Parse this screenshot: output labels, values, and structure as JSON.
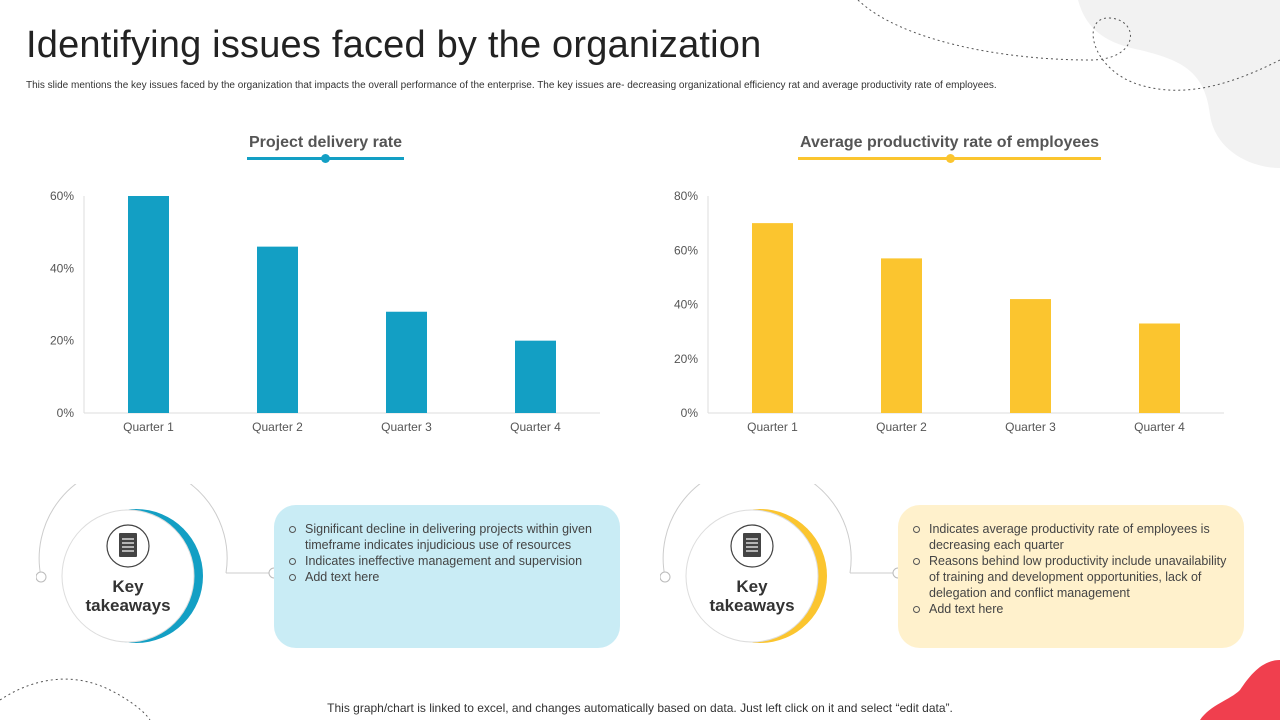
{
  "page": {
    "title": "Identifying issues faced by the organization",
    "subtitle": "This slide mentions the key issues faced by the organization that impacts the overall performance of the enterprise. The key issues are- decreasing organizational efficiency rat and average productivity rate of employees.",
    "footer": "This graph/chart is linked to excel, and changes automatically based on data. Just left click on it and select “edit data”."
  },
  "colors": {
    "blue": "#139fc4",
    "yellow": "#fbc52f",
    "blue_box": "#c9ecf5",
    "yellow_box": "#fff1cc",
    "red_accent": "#f03f4e",
    "grey_blob": "#f2f2f2"
  },
  "chart_data": [
    {
      "type": "bar",
      "title": "Project delivery rate",
      "categories": [
        "Quarter 1",
        "Quarter 2",
        "Quarter 3",
        "Quarter 4"
      ],
      "values": [
        60,
        46,
        28,
        20
      ],
      "ylim": [
        0,
        60
      ],
      "yticks": [
        "0%",
        "20%",
        "40%",
        "60%"
      ],
      "grid": false,
      "color": "#139fc4"
    },
    {
      "type": "bar",
      "title": "Average productivity rate of employees",
      "categories": [
        "Quarter 1",
        "Quarter 2",
        "Quarter 3",
        "Quarter 4"
      ],
      "values": [
        70,
        57,
        42,
        33
      ],
      "ylim": [
        0,
        80
      ],
      "yticks": [
        "0%",
        "20%",
        "40%",
        "60%",
        "80%"
      ],
      "grid": false,
      "color": "#fbc52f"
    }
  ],
  "takeaways": [
    {
      "label_line1": "Key",
      "label_line2": "takeaways",
      "icon": "document-icon",
      "points": [
        "Significant decline in delivering  projects within given timeframe indicates injudicious use of resources",
        "Indicates ineffective  management and supervision",
        "Add text here"
      ]
    },
    {
      "label_line1": "Key",
      "label_line2": "takeaways",
      "icon": "document-icon",
      "points": [
        "Indicates average  productivity rate of employees is decreasing each quarter",
        "Reasons behind low productivity include unavailability  of training and development opportunities, lack of delegation  and conflict management",
        "Add text here"
      ]
    }
  ]
}
